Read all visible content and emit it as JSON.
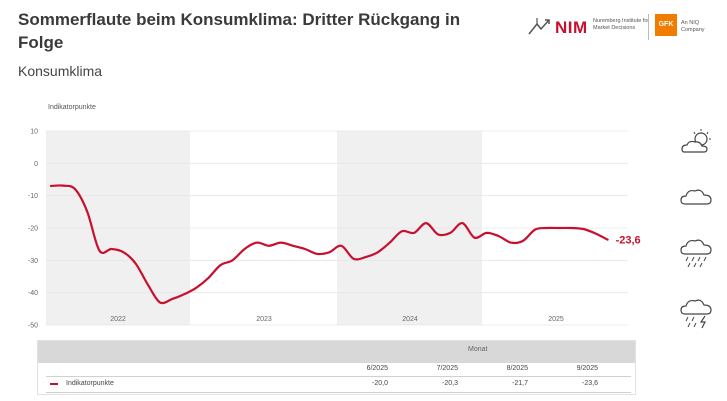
{
  "header": {
    "title": "Sommerflaute beim Konsumklima: Dritter Rückgang in Folge",
    "subtitle": "Konsumklima"
  },
  "logos": {
    "nim_word": "NIM",
    "nim_text": "Nuremberg Institute for Market Decisions",
    "gfk_word": "GFK",
    "gfk_text": "An NIQ Company"
  },
  "chart_data": {
    "type": "line",
    "ylabel": "Indikatorpunkte",
    "ylim": [
      -50,
      10
    ],
    "yticks": [
      "10",
      "0",
      "-10",
      "-20",
      "-30",
      "-40",
      "-50"
    ],
    "xlabels": [
      "2022",
      "2023",
      "2024",
      "2025"
    ],
    "end_label": "-23,6",
    "colors": {
      "line": "#c8102e",
      "band": "#f0f0f0",
      "grid": "#e6e6e6"
    },
    "series": [
      {
        "name": "Indikatorpunkte",
        "x": [
          "2021-11",
          "2021-12",
          "2022-01",
          "2022-02",
          "2022-03",
          "2022-04",
          "2022-05",
          "2022-06",
          "2022-07",
          "2022-08",
          "2022-09",
          "2022-10",
          "2022-11",
          "2022-12",
          "2023-01",
          "2023-02",
          "2023-03",
          "2023-04",
          "2023-05",
          "2023-06",
          "2023-07",
          "2023-08",
          "2023-09",
          "2023-10",
          "2023-11",
          "2023-12",
          "2024-01",
          "2024-02",
          "2024-03",
          "2024-04",
          "2024-05",
          "2024-06",
          "2024-07",
          "2024-08",
          "2024-09",
          "2024-10",
          "2024-11",
          "2024-12",
          "2025-01",
          "2025-02",
          "2025-03",
          "2025-04",
          "2025-05",
          "2025-06",
          "2025-07",
          "2025-08",
          "2025-09"
        ],
        "values": [
          -7.0,
          -6.9,
          -8.0,
          -15.0,
          -27.0,
          -26.5,
          -27.5,
          -31.0,
          -37.5,
          -43.0,
          -42.0,
          -40.5,
          -38.5,
          -35.5,
          -31.5,
          -30.0,
          -26.5,
          -24.5,
          -25.5,
          -24.5,
          -25.5,
          -26.5,
          -28.0,
          -27.5,
          -25.5,
          -29.5,
          -29.0,
          -27.5,
          -24.5,
          -21.0,
          -21.5,
          -18.5,
          -22.0,
          -21.5,
          -18.5,
          -23.0,
          -21.5,
          -22.5,
          -24.5,
          -24.0,
          -20.5,
          -20.0,
          -20.0,
          -20.0,
          -20.3,
          -21.7,
          -23.6
        ]
      }
    ]
  },
  "table": {
    "header": "Monat",
    "months": [
      "6/2025",
      "7/2025",
      "8/2025",
      "9/2025"
    ],
    "series_label": "Indikatorpunkte",
    "values": [
      "-20,0",
      "-20,3",
      "-21,7",
      "-23,6"
    ]
  }
}
